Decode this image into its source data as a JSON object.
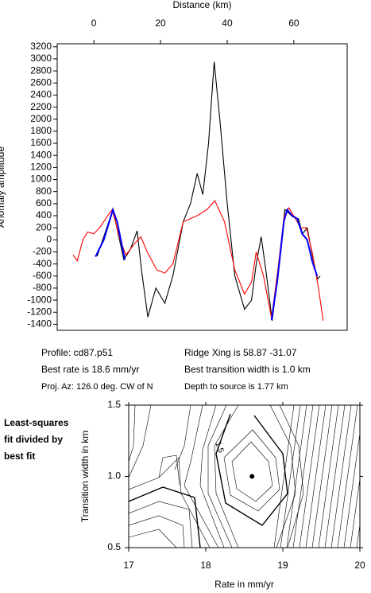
{
  "chart_data": [
    {
      "type": "line",
      "title": "Distance (km)",
      "ylabel": "Anomaly amplitude",
      "xlim": [
        -11,
        76
      ],
      "xticks": [
        0,
        20,
        40,
        60
      ],
      "ylim": [
        -1500,
        3250
      ],
      "yticks": [
        -1400,
        -1200,
        -1000,
        -800,
        -600,
        -400,
        -200,
        0,
        200,
        400,
        600,
        800,
        1000,
        1200,
        1400,
        1600,
        1800,
        2000,
        2200,
        2400,
        2600,
        2800,
        3000,
        3200
      ],
      "series": [
        {
          "color": "#000000",
          "x": [
            1,
            5.7,
            9,
            11,
            13,
            14.3,
            16.2,
            18.6,
            21.3,
            23.7,
            26.8,
            29,
            31,
            32.7,
            34.4,
            36.1,
            37.8,
            40,
            42.3,
            45.2,
            47.3,
            48.7,
            50.2,
            51.6,
            53.5,
            55.2,
            57.3,
            59.7,
            61.4,
            62.6,
            64,
            65.7,
            67.1,
            67.9
          ],
          "values": [
            -270,
            500,
            -330,
            -150,
            150,
            -500,
            -1280,
            -800,
            -1050,
            -600,
            300,
            600,
            1100,
            750,
            1600,
            2950,
            2000,
            600,
            -600,
            -1150,
            -1000,
            -400,
            50,
            -500,
            -1340,
            -600,
            500,
            380,
            350,
            100,
            200,
            -300,
            -650,
            -600
          ]
        },
        {
          "color": "#ff0000",
          "x": [
            -6.2,
            -5,
            -3.3,
            -1.9,
            0,
            1.7,
            4.8,
            5.5,
            7.9,
            9.6,
            12.4,
            14.1,
            16,
            18.9,
            21.3,
            23.7,
            26.8,
            31,
            33.9,
            36.3,
            39.2,
            42.3,
            45.2,
            47.3,
            48.7,
            50.9,
            53.3,
            55.2,
            57.1,
            58.5,
            62.1,
            63.8,
            65.5,
            67.4,
            68.8
          ],
          "values": [
            -250,
            -350,
            0,
            130,
            100,
            200,
            450,
            500,
            0,
            -250,
            -50,
            50,
            -200,
            -500,
            -550,
            -400,
            300,
            400,
            500,
            650,
            300,
            -500,
            -900,
            -700,
            -200,
            -600,
            -1300,
            -500,
            400,
            530,
            200,
            200,
            -200,
            -800,
            -1340
          ]
        },
        {
          "color": "#0000ff",
          "x": [
            0.5,
            3,
            5.7,
            7,
            9.3,
            null,
            53.3,
            55,
            57,
            58,
            59.5,
            61,
            62.5,
            64,
            65.5,
            67
          ],
          "values": [
            -280,
            0,
            500,
            300,
            -330,
            null,
            -1330,
            -700,
            300,
            500,
            400,
            350,
            100,
            0,
            -350,
            -600
          ]
        }
      ],
      "annotations": [
        "Profile: cd87.p51",
        "Ridge Xing is 58.87 -31.07",
        "Best rate is 18.6 mm/yr",
        "Best transition width is 1.0 km",
        "Proj. Az: 126.0 deg. CW of N",
        "Depth to source is   1.77 km"
      ]
    },
    {
      "type": "contour",
      "xlabel": "Rate in mm/yr",
      "ylabel": "Transition width in km",
      "xlim": [
        17,
        20
      ],
      "xticks": [
        17,
        18,
        19,
        20
      ],
      "ylim": [
        0.5,
        1.5
      ],
      "yticks": [
        0.5,
        {
          "value": 1,
          "label": "1.0"
        },
        1.5
      ],
      "points": {
        "x": [
          18.6
        ],
        "y": [
          1.0
        ],
        "color": "#000000"
      },
      "contour_label": "1.5",
      "side_note": [
        "Least-squares",
        "fit divided by",
        "best fit"
      ]
    }
  ]
}
